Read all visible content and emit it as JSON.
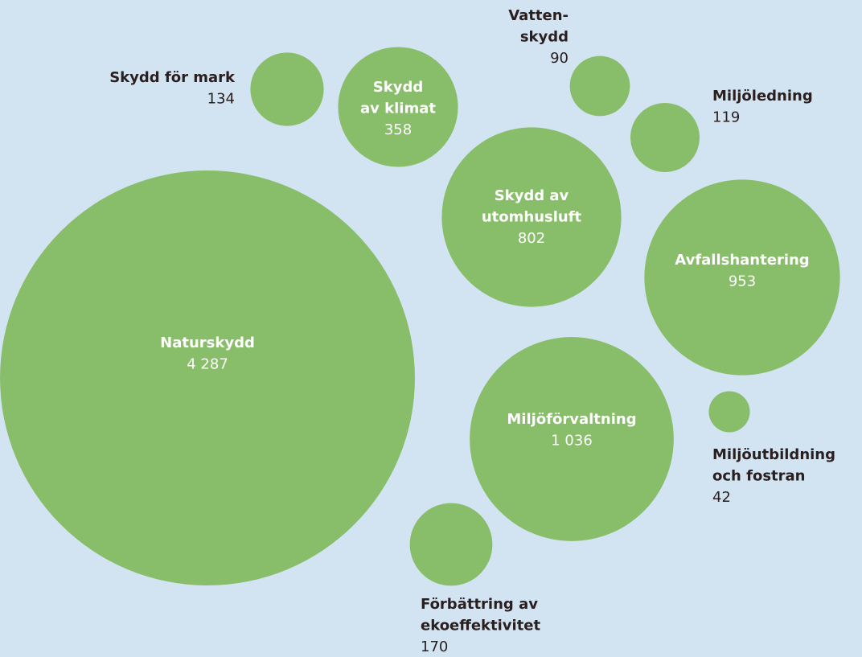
{
  "chart_data": {
    "type": "bubble",
    "color": "#88bd69",
    "categories": [
      [
        "Naturskydd"
      ],
      [
        "Skydd för mark"
      ],
      [
        "Skydd",
        "av klimat"
      ],
      [
        "Vatten-",
        "skydd"
      ],
      [
        "Miljöledning"
      ],
      [
        "Skydd av",
        "utomhusluft"
      ],
      [
        "Avfallshantering"
      ],
      [
        "Miljöförvaltning"
      ],
      [
        "Miljöutbildning",
        "och fostran"
      ],
      [
        "Förbättring av",
        "ekoeffektivitet"
      ]
    ],
    "values": [
      4287,
      134,
      358,
      90,
      119,
      802,
      953,
      1036,
      42,
      170
    ],
    "value_labels": [
      "4 287",
      "134",
      "358",
      "90",
      "119",
      "802",
      "953",
      "1 036",
      "42",
      "170"
    ]
  }
}
